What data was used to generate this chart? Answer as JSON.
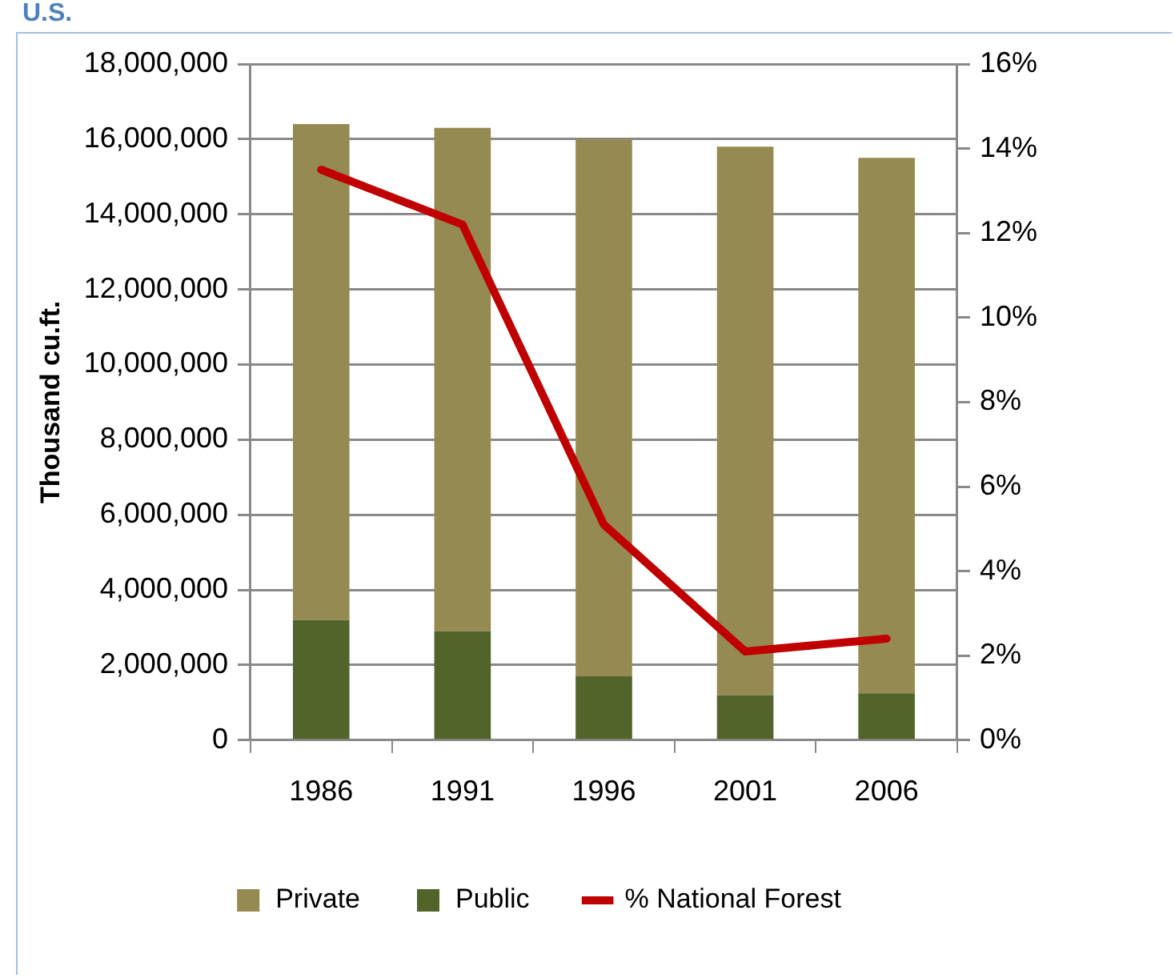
{
  "chart_data": {
    "type": "bar",
    "title": "U.S.",
    "ylabel": "Thousand cu.ft.",
    "stacked": true,
    "categories": [
      "1986",
      "1991",
      "1996",
      "2001",
      "2006"
    ],
    "series": [
      {
        "name": "Public",
        "color": "#52642a",
        "values": [
          3200000,
          2900000,
          1700000,
          1200000,
          1250000
        ]
      },
      {
        "name": "Private",
        "color": "#958b52",
        "values": [
          13200000,
          13400000,
          14300000,
          14600000,
          14250000
        ]
      },
      {
        "name": "% National Forest",
        "type": "line",
        "axis": "y2",
        "color": "#c00000",
        "values": [
          13.5,
          12.2,
          5.1,
          2.1,
          2.4
        ],
        "marker": "none",
        "line_style": "solid"
      }
    ],
    "ylim": [
      0,
      18000000
    ],
    "yticks": [
      {
        "value": 0,
        "label": "0"
      },
      {
        "value": 2000000,
        "label": "2,000,000"
      },
      {
        "value": 4000000,
        "label": "4,000,000"
      },
      {
        "value": 6000000,
        "label": "6,000,000"
      },
      {
        "value": 8000000,
        "label": "8,000,000"
      },
      {
        "value": 10000000,
        "label": "10,000,000"
      },
      {
        "value": 12000000,
        "label": "12,000,000"
      },
      {
        "value": 14000000,
        "label": "14,000,000"
      },
      {
        "value": 16000000,
        "label": "16,000,000"
      },
      {
        "value": 18000000,
        "label": "18,000,000"
      }
    ],
    "y2lim": [
      0,
      16
    ],
    "y2ticks": [
      {
        "value": 0,
        "label": "0%"
      },
      {
        "value": 2,
        "label": "2%"
      },
      {
        "value": 4,
        "label": "4%"
      },
      {
        "value": 6,
        "label": "6%"
      },
      {
        "value": 8,
        "label": "8%"
      },
      {
        "value": 10,
        "label": "10%"
      },
      {
        "value": 12,
        "label": "12%"
      },
      {
        "value": 14,
        "label": "14%"
      },
      {
        "value": 16,
        "label": "16%"
      }
    ],
    "grid": "y",
    "legend": "bottom"
  }
}
